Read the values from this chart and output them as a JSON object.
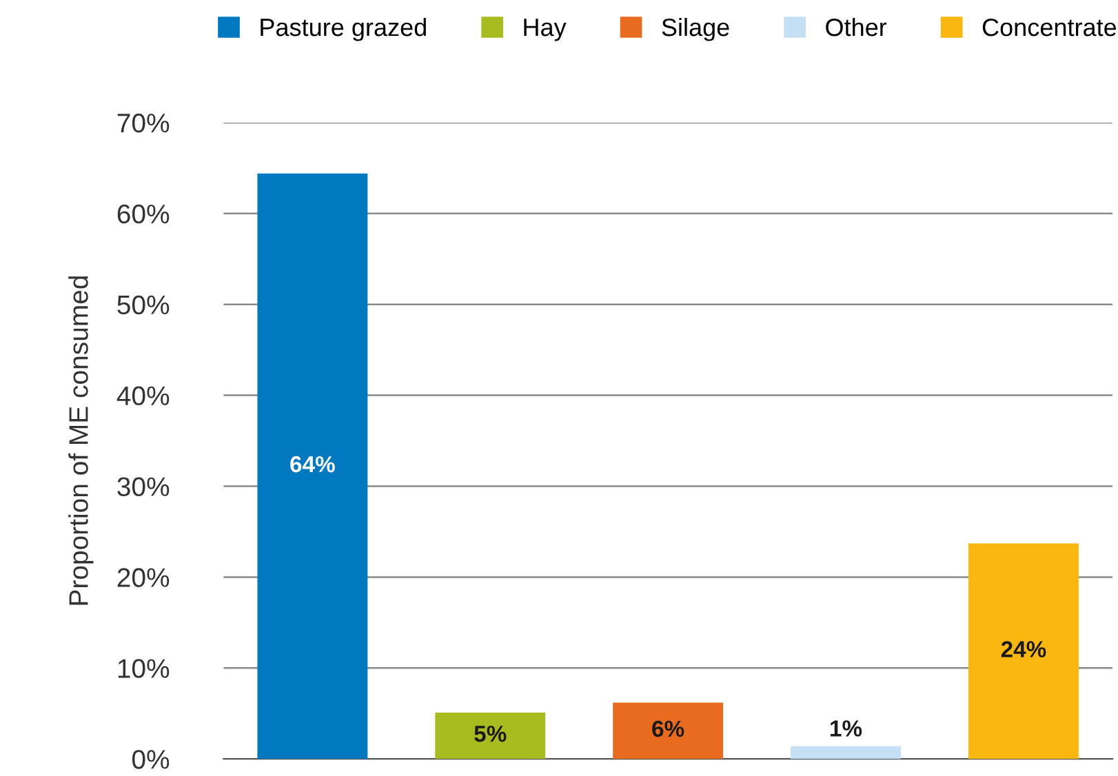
{
  "chart_data": {
    "type": "bar",
    "ylabel": "Proportion of ME consumed",
    "categories": [
      null,
      null,
      null,
      null,
      null
    ],
    "series": [
      {
        "name": "Pasture grazed",
        "color": "#0079c1",
        "values": [
          64.4,
          null,
          null,
          null,
          null
        ],
        "value_labels": [
          "64%",
          null,
          null,
          null,
          null
        ]
      },
      {
        "name": "Hay",
        "color": "#a8bc1f",
        "values": [
          null,
          5.1,
          null,
          null,
          null
        ],
        "value_labels": [
          null,
          "5%",
          null,
          null,
          null
        ]
      },
      {
        "name": "Silage",
        "color": "#e86b1f",
        "values": [
          null,
          null,
          6.2,
          null,
          null
        ],
        "value_labels": [
          null,
          null,
          "6%",
          null,
          null
        ]
      },
      {
        "name": "Other",
        "color": "#c5e0f5",
        "values": [
          null,
          null,
          null,
          1.4,
          null
        ],
        "value_labels": [
          null,
          null,
          null,
          "1%",
          null
        ]
      },
      {
        "name": "Concentrate",
        "color": "#f9b70f",
        "values": [
          null,
          null,
          null,
          null,
          23.7
        ],
        "value_labels": [
          null,
          null,
          null,
          null,
          "24%"
        ]
      }
    ],
    "ylim": [
      0,
      70
    ],
    "yticks": [
      {
        "value": 0,
        "label": "0%"
      },
      {
        "value": 10,
        "label": "10%"
      },
      {
        "value": 20,
        "label": "20%"
      },
      {
        "value": 30,
        "label": "30%"
      },
      {
        "value": 40,
        "label": "40%"
      },
      {
        "value": 50,
        "label": "50%"
      },
      {
        "value": 60,
        "label": "60%"
      },
      {
        "value": 70,
        "label": "70%"
      }
    ],
    "grid": "y",
    "legend": "top"
  }
}
